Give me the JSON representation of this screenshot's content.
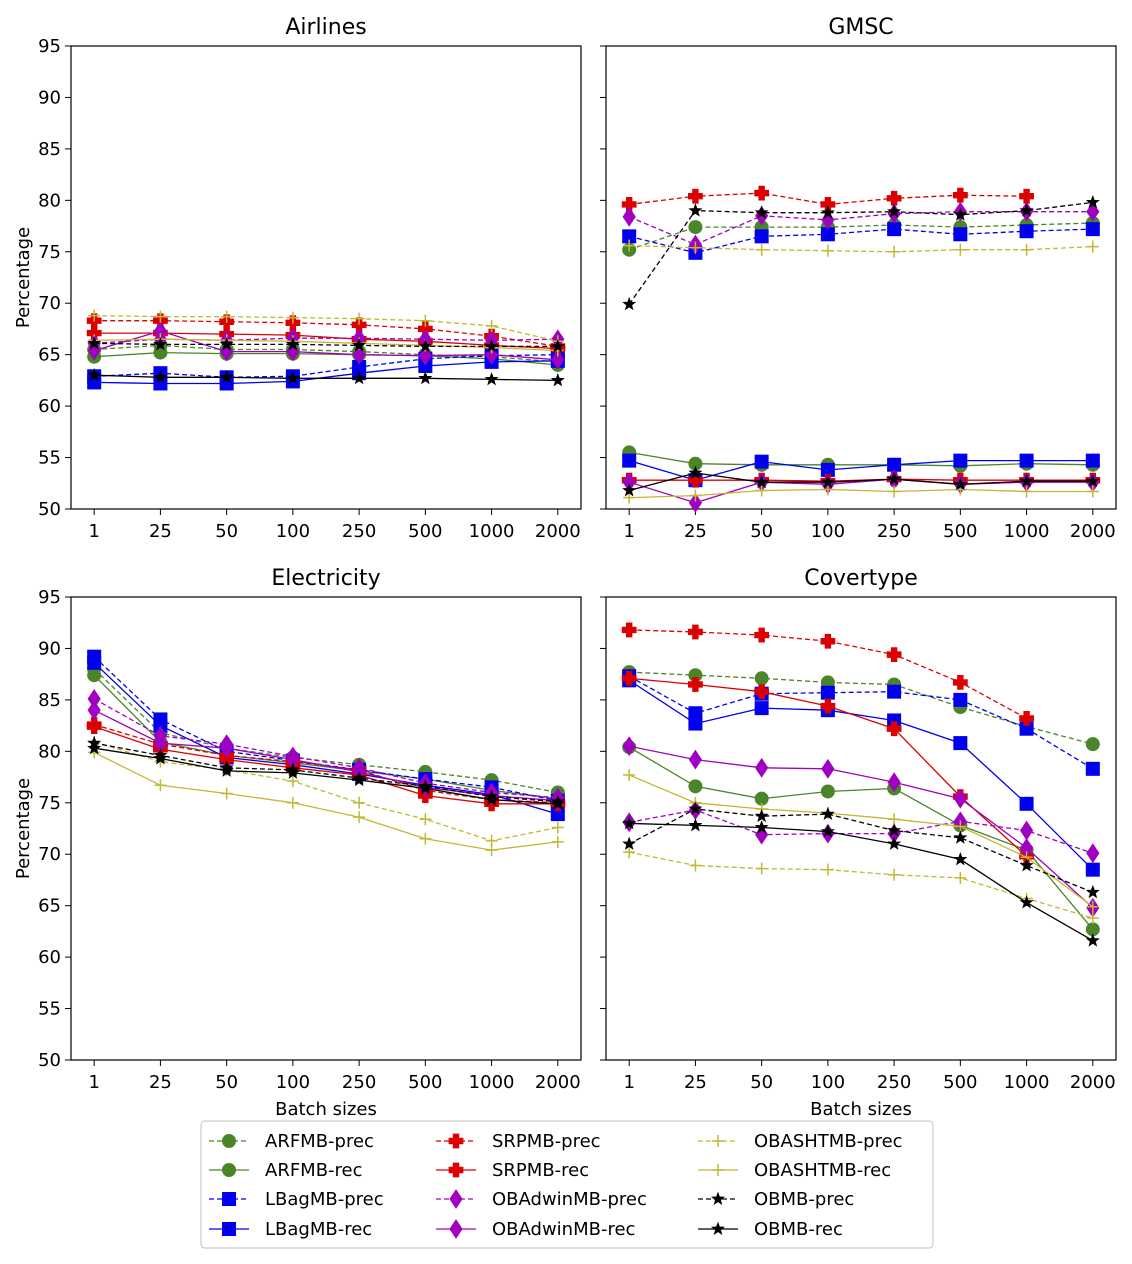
{
  "chart_data": {
    "type": "line",
    "layout": "2x2 grid of line plots with shared legend below",
    "categories": [
      "1",
      "25",
      "50",
      "100",
      "250",
      "500",
      "1000",
      "2000"
    ],
    "ylim": [
      50,
      95
    ],
    "yticks": [
      50,
      55,
      60,
      65,
      70,
      75,
      80,
      85,
      90,
      95
    ],
    "ylabel": "Percentage",
    "xlabel": "Batch sizes",
    "legend_position": "bottom-center",
    "series_styles": [
      {
        "name": "ARFMB-prec",
        "color": "#4b8529",
        "dashed": true,
        "marker": "circle"
      },
      {
        "name": "ARFMB-rec",
        "color": "#4b8529",
        "dashed": false,
        "marker": "circle"
      },
      {
        "name": "LBagMB-prec",
        "color": "#0000ee",
        "dashed": true,
        "marker": "square"
      },
      {
        "name": "LBagMB-rec",
        "color": "#0000ee",
        "dashed": false,
        "marker": "square"
      },
      {
        "name": "SRPMB-prec",
        "color": "#dd0000",
        "dashed": true,
        "marker": "plus"
      },
      {
        "name": "SRPMB-rec",
        "color": "#dd0000",
        "dashed": false,
        "marker": "plus"
      },
      {
        "name": "OBAdwinMB-prec",
        "color": "#a000c0",
        "dashed": true,
        "marker": "diamond"
      },
      {
        "name": "OBAdwinMB-rec",
        "color": "#a000c0",
        "dashed": false,
        "marker": "diamond"
      },
      {
        "name": "OBASHTMB-prec",
        "color": "#c2b833",
        "dashed": true,
        "marker": "thinplus"
      },
      {
        "name": "OBASHTMB-rec",
        "color": "#c2b833",
        "dashed": false,
        "marker": "thinplus"
      },
      {
        "name": "OBMB-prec",
        "color": "#000000",
        "dashed": true,
        "marker": "star"
      },
      {
        "name": "OBMB-rec",
        "color": "#000000",
        "dashed": false,
        "marker": "star"
      }
    ],
    "panels": [
      {
        "title": "Airlines",
        "series": [
          {
            "name": "ARFMB-prec",
            "values": [
              65.5,
              65.9,
              65.5,
              65.5,
              65.3,
              65.0,
              64.8,
              64.3
            ]
          },
          {
            "name": "ARFMB-rec",
            "values": [
              64.8,
              65.2,
              65.1,
              65.1,
              65.0,
              64.9,
              64.6,
              64.0
            ]
          },
          {
            "name": "LBagMB-prec",
            "values": [
              62.9,
              63.2,
              62.8,
              62.9,
              63.8,
              64.6,
              64.9,
              65.0
            ]
          },
          {
            "name": "LBagMB-rec",
            "values": [
              62.3,
              62.2,
              62.2,
              62.4,
              63.2,
              63.9,
              64.3,
              64.4
            ]
          },
          {
            "name": "SRPMB-prec",
            "values": [
              68.3,
              68.3,
              68.2,
              68.1,
              67.9,
              67.5,
              66.8,
              65.8
            ]
          },
          {
            "name": "SRPMB-rec",
            "values": [
              67.1,
              67.1,
              67.0,
              66.9,
              66.5,
              66.3,
              65.9,
              65.6
            ]
          },
          {
            "name": "OBAdwinMB-prec",
            "values": [
              66.1,
              66.5,
              66.4,
              66.6,
              66.6,
              66.5,
              66.4,
              66.5
            ]
          },
          {
            "name": "OBAdwinMB-rec",
            "values": [
              65.4,
              67.3,
              65.3,
              65.3,
              65.0,
              64.9,
              65.0,
              64.5
            ]
          },
          {
            "name": "OBASHTMB-prec",
            "values": [
              68.8,
              68.7,
              68.7,
              68.6,
              68.5,
              68.3,
              67.8,
              66.3
            ]
          },
          {
            "name": "OBASHTMB-rec",
            "values": [
              66.4,
              66.5,
              66.4,
              66.3,
              66.1,
              65.9,
              65.7,
              65.4
            ]
          },
          {
            "name": "OBMB-prec",
            "values": [
              66.1,
              66.0,
              66.0,
              66.0,
              65.9,
              65.8,
              65.8,
              65.8
            ]
          },
          {
            "name": "OBMB-rec",
            "values": [
              63.0,
              62.8,
              62.8,
              62.7,
              62.7,
              62.7,
              62.6,
              62.5
            ]
          }
        ]
      },
      {
        "title": "GMSC",
        "series": [
          {
            "name": "ARFMB-prec",
            "values": [
              75.2,
              77.4,
              77.4,
              77.4,
              77.6,
              77.4,
              77.6,
              77.8
            ]
          },
          {
            "name": "ARFMB-rec",
            "values": [
              55.5,
              54.4,
              54.3,
              54.3,
              54.3,
              54.2,
              54.4,
              54.3
            ]
          },
          {
            "name": "LBagMB-prec",
            "values": [
              76.5,
              74.9,
              76.5,
              76.7,
              77.2,
              76.7,
              77.0,
              77.2
            ]
          },
          {
            "name": "LBagMB-rec",
            "values": [
              54.7,
              52.8,
              54.6,
              53.8,
              54.3,
              54.7,
              54.7,
              54.7
            ]
          },
          {
            "name": "SRPMB-prec",
            "values": [
              79.6,
              80.4,
              80.7,
              79.6,
              80.2,
              80.5,
              80.4,
              null
            ]
          },
          {
            "name": "SRPMB-rec",
            "values": [
              52.8,
              52.8,
              52.8,
              52.7,
              52.9,
              52.8,
              52.8,
              52.8
            ]
          },
          {
            "name": "OBAdwinMB-prec",
            "values": [
              78.4,
              75.7,
              78.5,
              78.1,
              78.7,
              78.9,
              78.9,
              78.9
            ]
          },
          {
            "name": "OBAdwinMB-rec",
            "values": [
              52.6,
              50.6,
              52.6,
              52.4,
              52.9,
              52.4,
              52.6,
              52.6
            ]
          },
          {
            "name": "OBASHTMB-prec",
            "values": [
              75.6,
              75.4,
              75.2,
              75.1,
              75.0,
              75.2,
              75.2,
              75.5
            ]
          },
          {
            "name": "OBASHTMB-rec",
            "values": [
              51.1,
              51.3,
              51.8,
              51.9,
              51.7,
              51.9,
              51.7,
              51.7
            ]
          },
          {
            "name": "OBMB-prec",
            "values": [
              69.9,
              79.0,
              78.8,
              78.8,
              78.9,
              78.6,
              79.0,
              79.8
            ]
          },
          {
            "name": "OBMB-rec",
            "values": [
              51.8,
              53.5,
              52.6,
              52.6,
              52.9,
              52.4,
              52.7,
              52.7
            ]
          }
        ]
      },
      {
        "title": "Electricity",
        "series": [
          {
            "name": "ARFMB-prec",
            "values": [
              88.0,
              81.8,
              80.3,
              79.4,
              78.7,
              78.0,
              77.2,
              76.0
            ]
          },
          {
            "name": "ARFMB-rec",
            "values": [
              87.4,
              80.9,
              79.6,
              78.9,
              78.1,
              77.3,
              76.2,
              75.4
            ]
          },
          {
            "name": "LBagMB-prec",
            "values": [
              89.2,
              83.1,
              80.0,
              79.1,
              78.2,
              77.3,
              76.5,
              75.2
            ]
          },
          {
            "name": "LBagMB-rec",
            "values": [
              88.6,
              82.5,
              79.4,
              78.7,
              77.8,
              76.7,
              75.8,
              73.9
            ]
          },
          {
            "name": "SRPMB-prec",
            "values": [
              82.6,
              80.7,
              79.6,
              79.0,
              78.2,
              76.2,
              75.3,
              75.0
            ]
          },
          {
            "name": "SRPMB-rec",
            "values": [
              82.4,
              80.2,
              79.2,
              78.4,
              77.7,
              75.7,
              74.9,
              74.9
            ]
          },
          {
            "name": "OBAdwinMB-prec",
            "values": [
              85.1,
              81.5,
              80.7,
              79.5,
              78.4,
              76.9,
              76.0,
              75.5
            ]
          },
          {
            "name": "OBAdwinMB-rec",
            "values": [
              84.0,
              80.8,
              80.3,
              79.2,
              78.0,
              76.5,
              75.7,
              75.2
            ]
          },
          {
            "name": "OBASHTMB-prec",
            "values": [
              80.9,
              79.0,
              78.2,
              77.1,
              75.0,
              73.4,
              71.3,
              72.6
            ]
          },
          {
            "name": "OBASHTMB-rec",
            "values": [
              79.9,
              76.7,
              75.9,
              75.0,
              73.6,
              71.5,
              70.4,
              71.2
            ]
          },
          {
            "name": "OBMB-prec",
            "values": [
              80.8,
              79.6,
              78.4,
              78.2,
              77.4,
              76.6,
              75.6,
              75.1
            ]
          },
          {
            "name": "OBMB-rec",
            "values": [
              80.3,
              79.3,
              78.1,
              77.9,
              77.2,
              76.4,
              75.3,
              74.9
            ]
          }
        ]
      },
      {
        "title": "Covertype",
        "series": [
          {
            "name": "ARFMB-prec",
            "values": [
              87.7,
              87.4,
              87.1,
              86.7,
              86.5,
              84.3,
              82.4,
              80.7
            ]
          },
          {
            "name": "ARFMB-rec",
            "values": [
              80.4,
              76.6,
              75.4,
              76.1,
              76.4,
              72.8,
              70.4,
              62.7
            ]
          },
          {
            "name": "LBagMB-prec",
            "values": [
              87.3,
              83.7,
              85.6,
              85.7,
              85.8,
              85.0,
              82.2,
              78.3
            ]
          },
          {
            "name": "LBagMB-rec",
            "values": [
              86.9,
              82.7,
              84.2,
              84.0,
              83.0,
              80.8,
              74.9,
              68.5
            ]
          },
          {
            "name": "SRPMB-prec",
            "values": [
              91.8,
              91.6,
              91.3,
              90.7,
              89.4,
              86.7,
              83.2,
              null
            ]
          },
          {
            "name": "SRPMB-rec",
            "values": [
              87.1,
              86.5,
              85.8,
              84.4,
              82.2,
              75.6,
              69.8,
              null
            ]
          },
          {
            "name": "OBAdwinMB-prec",
            "values": [
              73.1,
              74.3,
              71.9,
              72.0,
              72.0,
              73.2,
              72.3,
              70.1
            ]
          },
          {
            "name": "OBAdwinMB-rec",
            "values": [
              80.5,
              79.2,
              78.4,
              78.3,
              77.0,
              75.4,
              70.6,
              64.8
            ]
          },
          {
            "name": "OBASHTMB-prec",
            "values": [
              70.2,
              68.9,
              68.6,
              68.5,
              68.0,
              67.7,
              65.7,
              63.8
            ]
          },
          {
            "name": "OBASHTMB-rec",
            "values": [
              77.7,
              75.0,
              74.4,
              74.0,
              73.4,
              72.7,
              69.7,
              64.9
            ]
          },
          {
            "name": "OBMB-prec",
            "values": [
              71.0,
              74.4,
              73.7,
              73.9,
              72.3,
              71.6,
              68.9,
              66.3
            ]
          },
          {
            "name": "OBMB-rec",
            "values": [
              73.0,
              72.8,
              72.6,
              72.2,
              71.0,
              69.5,
              65.3,
              61.6
            ]
          }
        ]
      }
    ]
  }
}
